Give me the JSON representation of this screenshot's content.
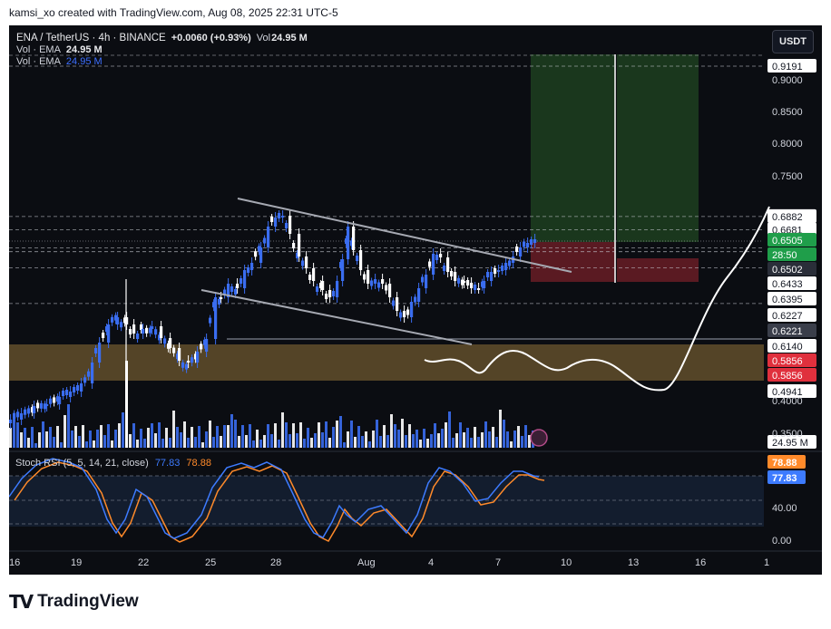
{
  "header": {
    "caption": "kamsi_xo created with TradingView.com, Aug 08, 2025 22:31 UTC-5"
  },
  "legend": {
    "symbol": "ENA / TetherUS · 4h · BINANCE",
    "change": "+0.0060 (+0.93%)",
    "vol_label": "Vol",
    "vol_value": "24.95 M",
    "ema_rows": [
      {
        "label": "Vol · EMA",
        "value": "24.95 M"
      },
      {
        "label": "Vol · EMA",
        "value": "24.95 M"
      }
    ]
  },
  "currency_button": "USDT",
  "price_axis": {
    "ticks": [
      "0.9000",
      "0.8500",
      "0.8000",
      "0.7500",
      "0.4000",
      "0.3500"
    ],
    "labels": [
      {
        "text": "0.9191",
        "style": "plain"
      },
      {
        "text": "0.6882",
        "style": "plain"
      },
      {
        "text": "0.6681",
        "style": "plain"
      },
      {
        "text": "0.6505",
        "style": "green"
      },
      {
        "text": "28:50",
        "style": "green"
      },
      {
        "text": "0.6502",
        "style": "dark"
      },
      {
        "text": "0.6433",
        "style": "plain"
      },
      {
        "text": "0.6395",
        "style": "plain"
      },
      {
        "text": "0.6227",
        "style": "plain"
      },
      {
        "text": "0.6221",
        "style": "gray"
      },
      {
        "text": "0.6140",
        "style": "plain"
      },
      {
        "text": "0.5856",
        "style": "red"
      },
      {
        "text": "0.5856",
        "style": "red"
      },
      {
        "text": "0.4941",
        "style": "plain"
      },
      {
        "text": "24.95 M",
        "style": "plain"
      }
    ]
  },
  "stoch_rsi": {
    "label": "Stoch RSI (5, 5, 14, 21, close)",
    "k_value": "77.83",
    "d_value": "78.88",
    "axis_ticks": [
      "40.00",
      "0.00"
    ],
    "k_color": "#3d7bff",
    "d_color": "#ff8a2a"
  },
  "time_axis": {
    "labels": [
      "16",
      "19",
      "22",
      "25",
      "28",
      "Aug",
      "4",
      "7",
      "10",
      "13",
      "16",
      "1"
    ]
  },
  "colors": {
    "bullish": "#3a6df0",
    "bearish": "#ffffff",
    "target_zone": "#1b3a1f",
    "stop_zone": "#5a1a22",
    "demand_zone": "#5c4a2a",
    "projection": "#ffffff"
  },
  "chart_data": {
    "type": "candlestick",
    "symbol": "ENA / TetherUS",
    "interval": "4h",
    "last_price": 0.6505,
    "change": 0.006,
    "change_percent": 0.93,
    "volume": "24.95 M",
    "x_labels": [
      "16",
      "19",
      "22",
      "25",
      "28",
      "Aug",
      "4",
      "7",
      "10",
      "13",
      "16"
    ],
    "price_levels": [
      0.9191,
      0.6882,
      0.6681,
      0.6505,
      0.6502,
      0.6433,
      0.6395,
      0.6227,
      0.6221,
      0.614,
      0.5856,
      0.4941
    ],
    "stoch_rsi": {
      "k": 77.83,
      "d": 78.88
    }
  },
  "footer": {
    "brand": "TradingView"
  }
}
